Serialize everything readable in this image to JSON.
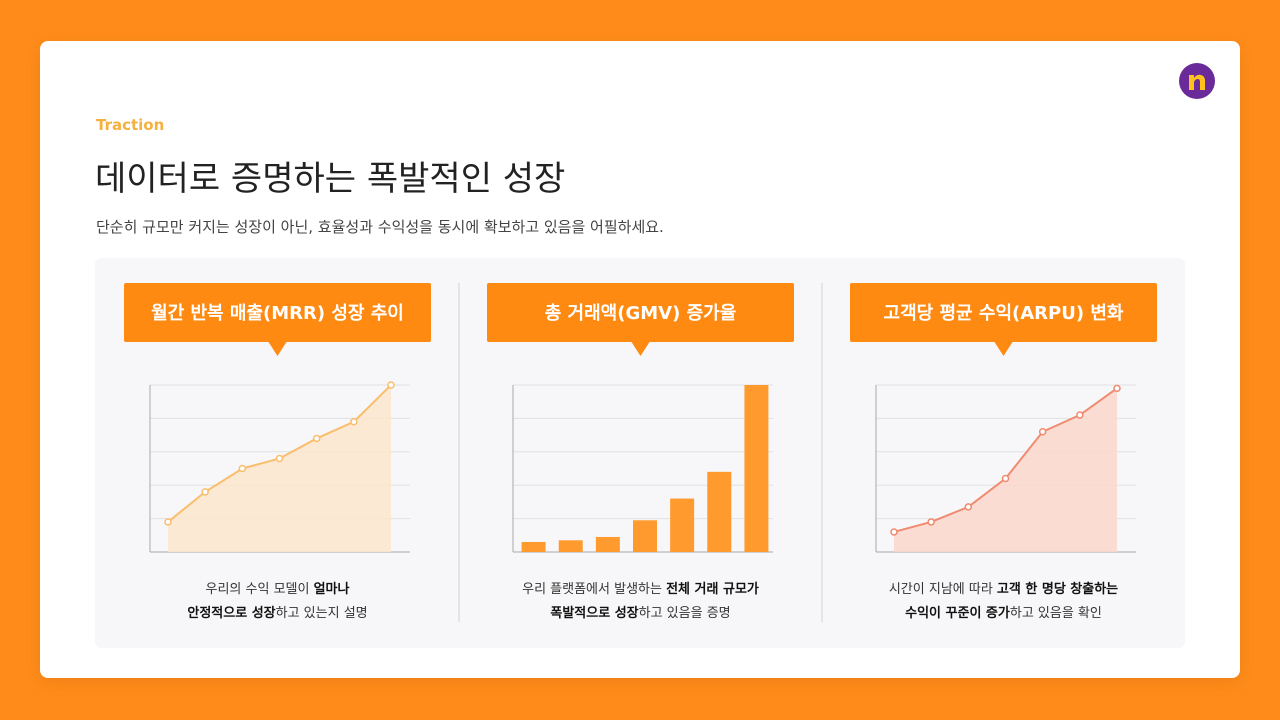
{
  "header": {
    "eyebrow": "Traction",
    "title": "데이터로 증명하는 폭발적인 성장",
    "subtitle": "단순히 규모만 커지는 성장이 아닌, 효율성과 수익성을 동시에 확보하고 있음을 어필하세요."
  },
  "panels": [
    {
      "title": "월간 반복 매출(MRR) 성장 추이",
      "chart": {
        "type": "area",
        "color": "#f9bd6c",
        "fill": "#fbe6cc",
        "ylim": [
          0,
          5
        ],
        "yticks": [
          0,
          1,
          2,
          3,
          4,
          5
        ],
        "grid": true,
        "values": [
          0.9,
          1.8,
          2.5,
          2.8,
          3.4,
          3.9,
          5.0
        ]
      },
      "description": [
        [
          {
            "text": "우리의 수익 모델이 ",
            "strong": false
          },
          {
            "text": "얼마나",
            "strong": true
          }
        ],
        [
          {
            "text": "안정적으로 성장",
            "strong": true
          },
          {
            "text": "하고 있는지 설명",
            "strong": false
          }
        ]
      ]
    },
    {
      "title": "총 거래액(GMV) 증가율",
      "chart": {
        "type": "bar",
        "color": "#ff9a2e",
        "ylim": [
          0,
          5
        ],
        "yticks": [
          0,
          1,
          2,
          3,
          4,
          5
        ],
        "grid": true,
        "values": [
          0.3,
          0.35,
          0.45,
          0.95,
          1.6,
          2.4,
          5.0
        ]
      },
      "description": [
        [
          {
            "text": "우리 플랫폼에서 발생하는 ",
            "strong": false
          },
          {
            "text": "전체 거래 규모가",
            "strong": true
          }
        ],
        [
          {
            "text": "폭발적으로 성장",
            "strong": true
          },
          {
            "text": "하고 있음을 증명",
            "strong": false
          }
        ]
      ]
    },
    {
      "title": "고객당 평균 수익(ARPU) 변화",
      "chart": {
        "type": "area",
        "color": "#f08a70",
        "fill": "#fbd7cd",
        "ylim": [
          0,
          5
        ],
        "yticks": [
          0,
          1,
          2,
          3,
          4,
          5
        ],
        "grid": true,
        "values": [
          0.6,
          0.9,
          1.35,
          2.2,
          3.6,
          4.1,
          4.9
        ]
      },
      "description": [
        [
          {
            "text": "시간이 지남에 따라 ",
            "strong": false
          },
          {
            "text": "고객 한 명당 창출하는",
            "strong": true
          }
        ],
        [
          {
            "text": "수익이 꾸준이 증가",
            "strong": true
          },
          {
            "text": "하고 있음을 확인",
            "strong": false
          }
        ]
      ]
    }
  ]
}
